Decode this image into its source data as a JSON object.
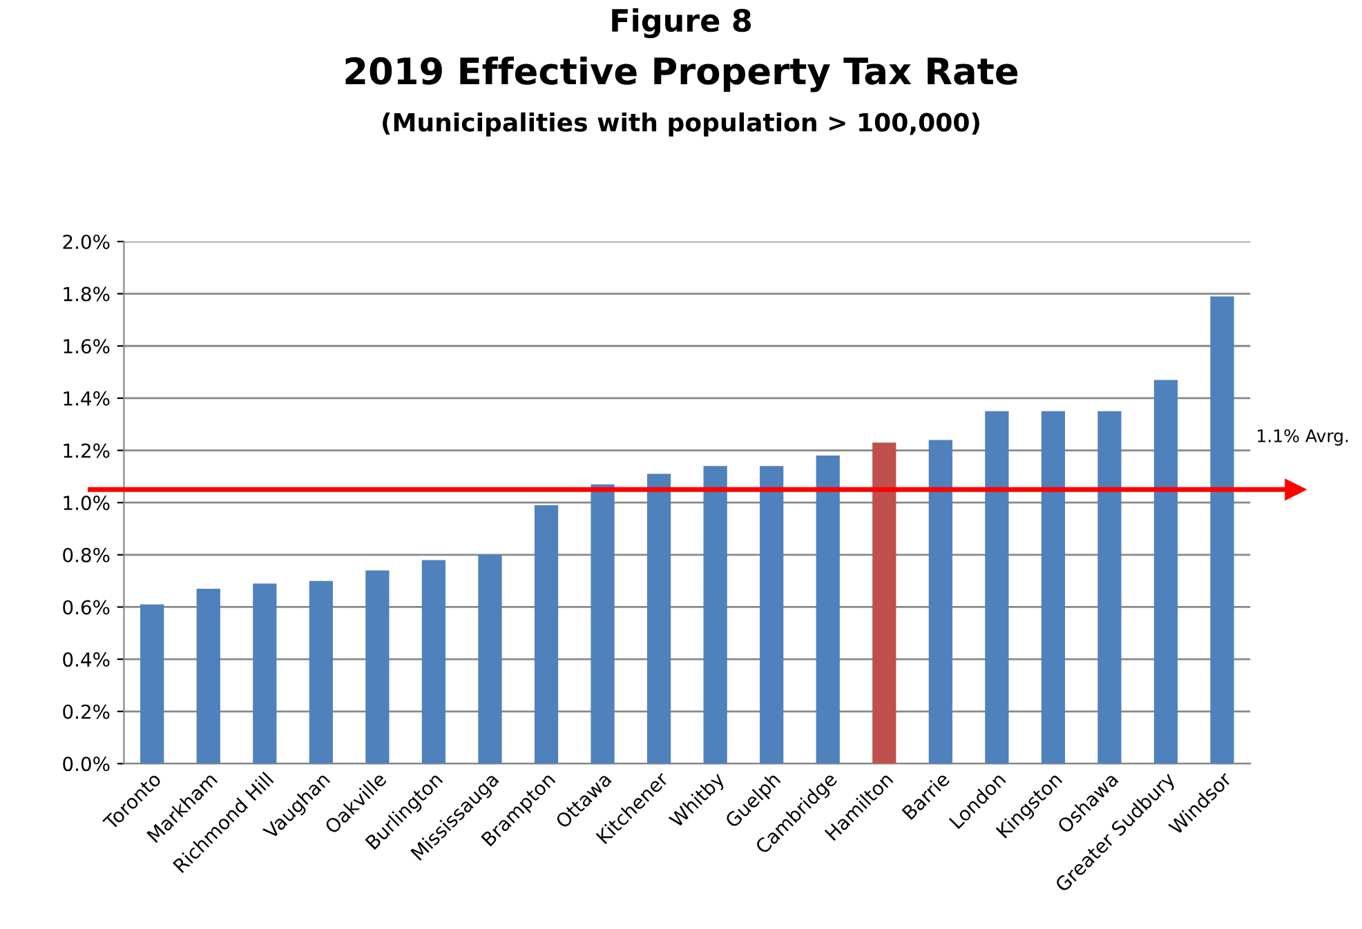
{
  "chart_data": {
    "type": "bar",
    "title": "2019 Effective Property Tax Rate",
    "subtitle": "(Municipalities with population > 100,000)",
    "annotations": [
      "Figure 8"
    ],
    "categories": [
      "Toronto",
      "Markham",
      "Richmond Hill",
      "Vaughan",
      "Oakville",
      "Burlington",
      "Mississauga",
      "Brampton",
      "Ottawa",
      "Kitchener",
      "Whitby",
      "Guelph",
      "Cambridge",
      "Hamilton",
      "Barrie",
      "London",
      "Kingston",
      "Oshawa",
      "Greater Sudbury",
      "Windsor"
    ],
    "values": [
      0.61,
      0.67,
      0.69,
      0.7,
      0.74,
      0.78,
      0.8,
      0.99,
      1.07,
      1.11,
      1.14,
      1.14,
      1.18,
      1.23,
      1.24,
      1.35,
      1.35,
      1.35,
      1.47,
      1.79
    ],
    "colors": [
      "#4f81bd",
      "#4f81bd",
      "#4f81bd",
      "#4f81bd",
      "#4f81bd",
      "#4f81bd",
      "#4f81bd",
      "#4f81bd",
      "#4f81bd",
      "#4f81bd",
      "#4f81bd",
      "#4f81bd",
      "#4f81bd",
      "#c0504d",
      "#4f81bd",
      "#4f81bd",
      "#4f81bd",
      "#4f81bd",
      "#4f81bd",
      "#4f81bd"
    ],
    "ylim": [
      0,
      2.0
    ],
    "yticks": [
      {
        "value": 0,
        "label": "0.0%"
      },
      {
        "value": 0.2,
        "label": "0.2%"
      },
      {
        "value": 0.4,
        "label": "0.4%"
      },
      {
        "value": 0.6,
        "label": "0.6%"
      },
      {
        "value": 0.8,
        "label": "0.8%"
      },
      {
        "value": 1.0,
        "label": "1.0%"
      },
      {
        "value": 1.2,
        "label": "1.2%"
      },
      {
        "value": 1.4,
        "label": "1.4%"
      },
      {
        "value": 1.6,
        "label": "1.6%"
      },
      {
        "value": 1.8,
        "label": "1.8%"
      },
      {
        "value": 2.0,
        "label": "2.0%"
      }
    ],
    "grid": "y",
    "ref_lines": [
      {
        "axis": "y",
        "value": 1.05,
        "label": "1.1% Avrg.",
        "color": "#ff0000"
      }
    ]
  }
}
